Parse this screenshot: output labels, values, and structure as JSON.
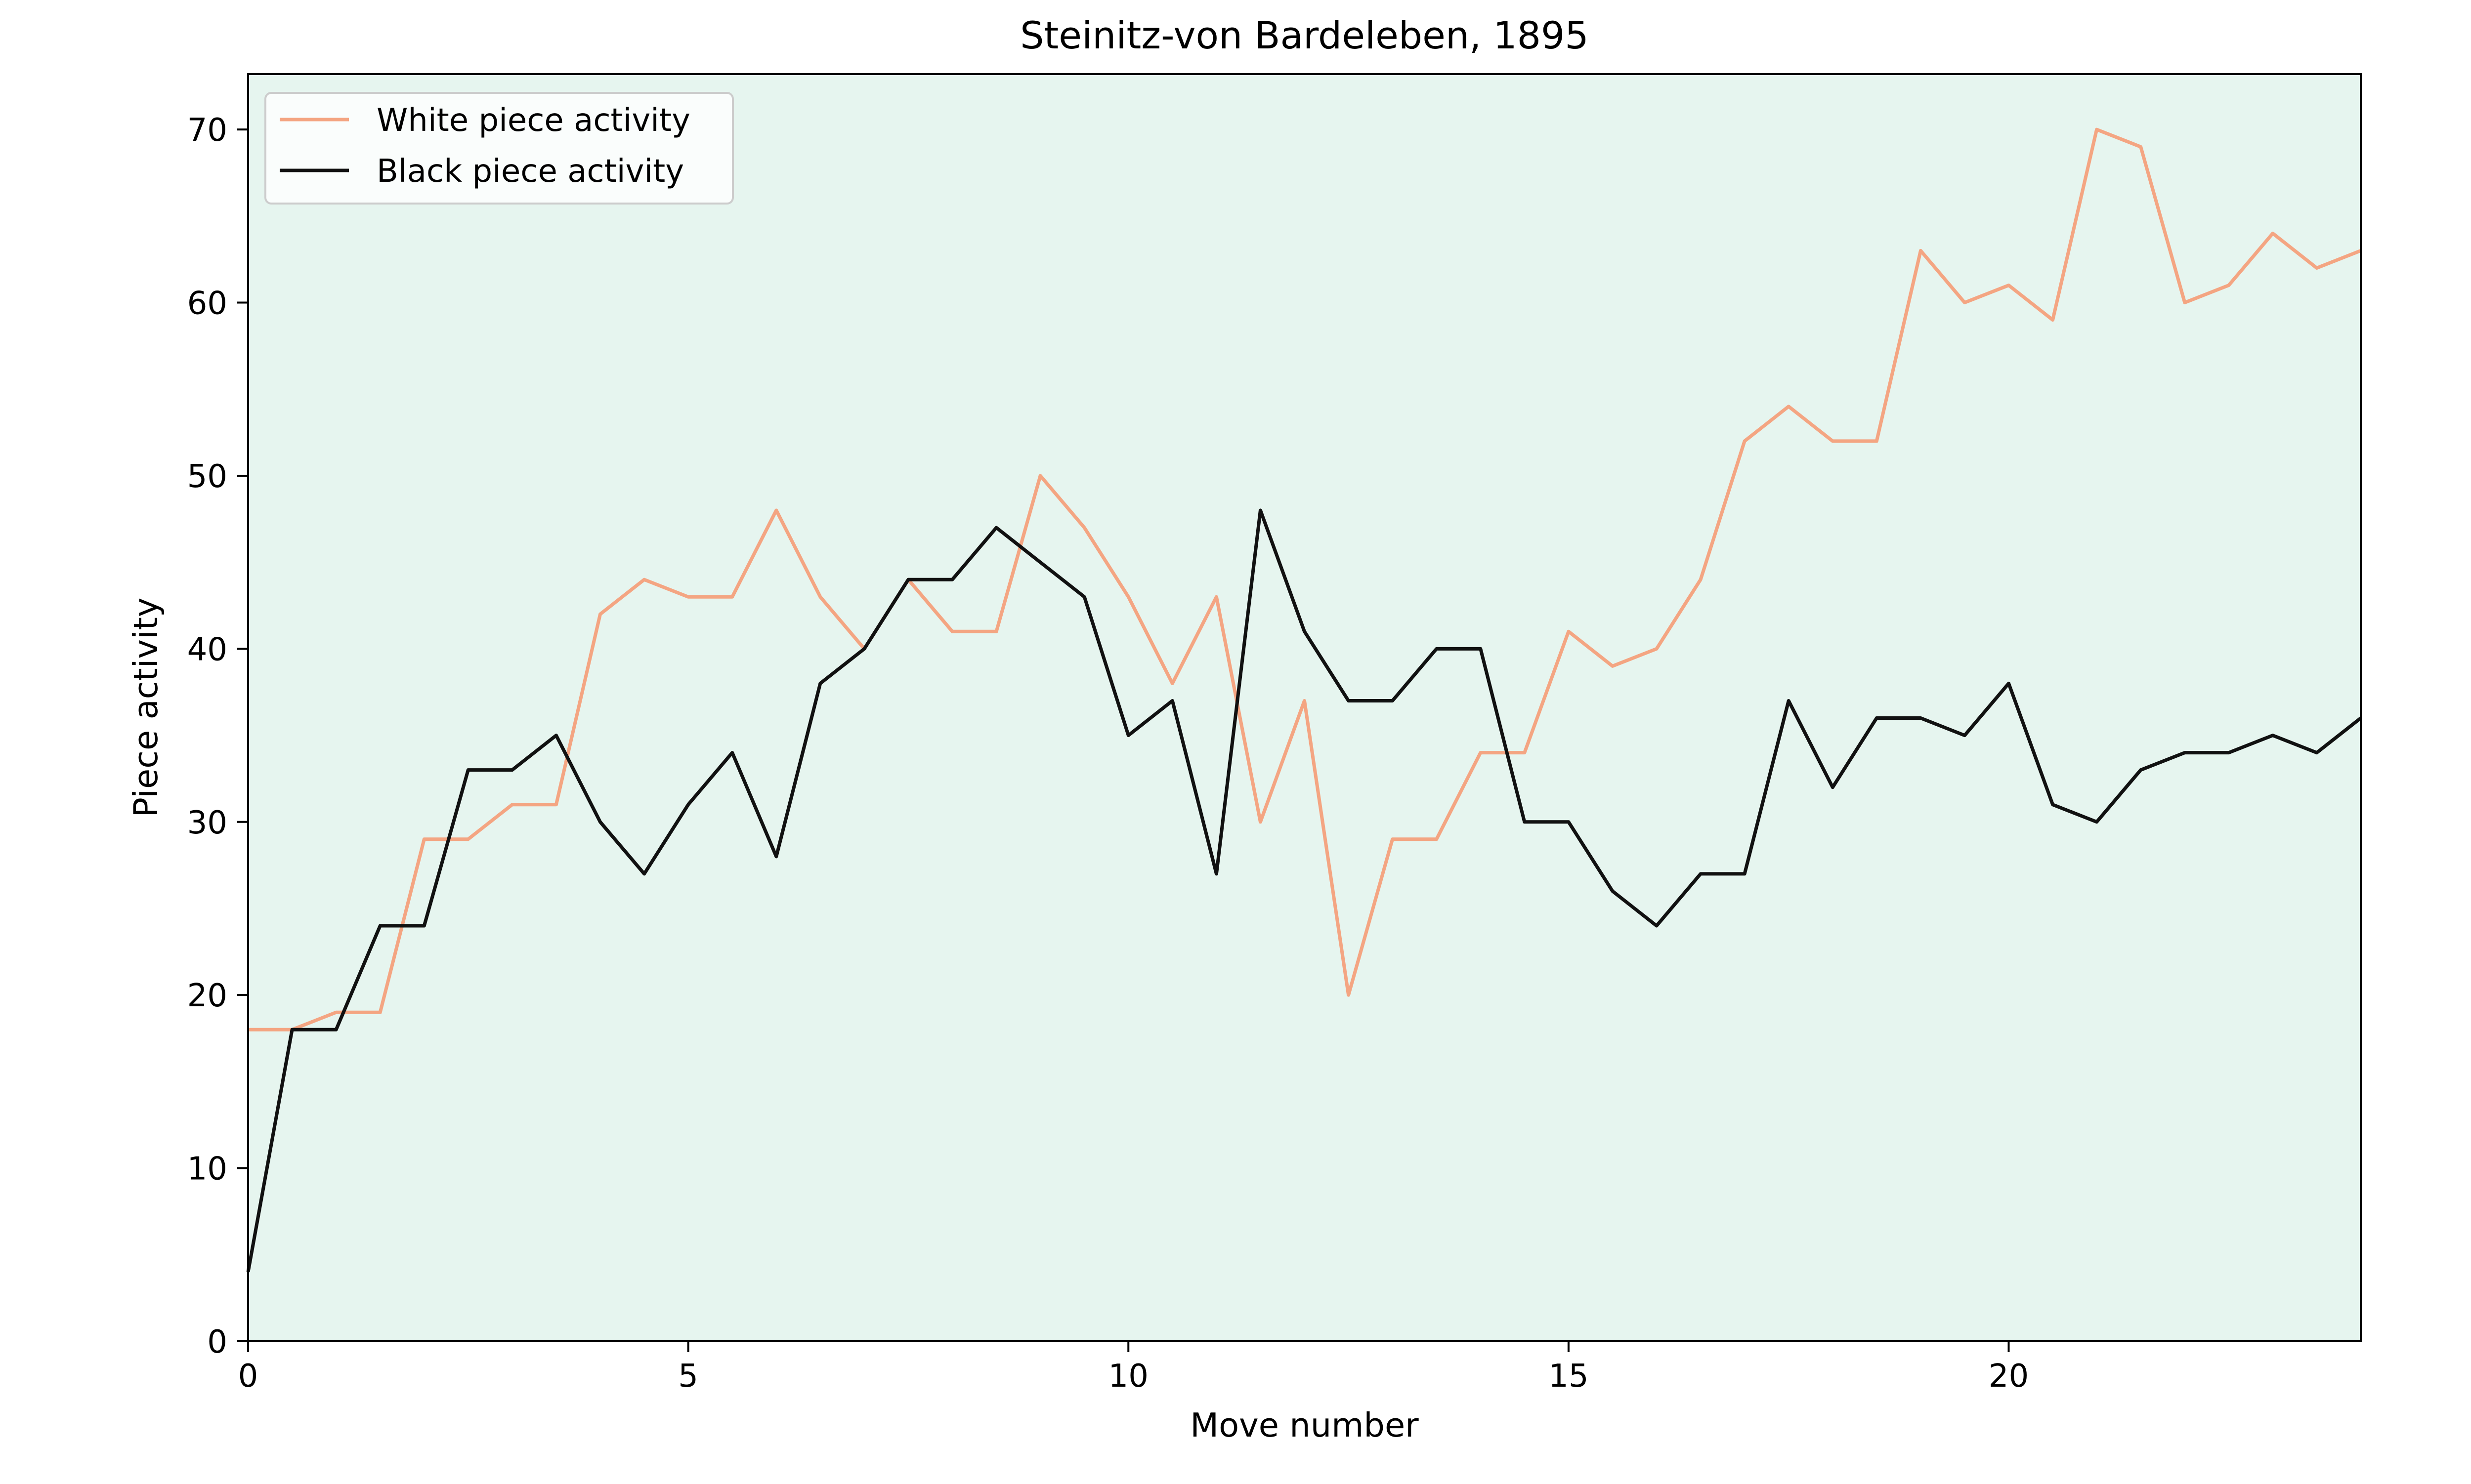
{
  "chart_data": {
    "type": "line",
    "title": "Steinitz-von Bardeleben, 1895",
    "xlabel": "Move number",
    "ylabel": "Piece activity",
    "xlim": [
      0,
      24
    ],
    "ylim": [
      0,
      73.2
    ],
    "xticks": [
      0,
      5,
      10,
      15,
      20
    ],
    "yticks": [
      0,
      10,
      20,
      30,
      40,
      50,
      60,
      70
    ],
    "grid": false,
    "legend_position": "top-left",
    "plot_background": "#e6f5ef",
    "x": [
      0,
      0.5,
      1,
      1.5,
      2,
      2.5,
      3,
      3.5,
      4,
      4.5,
      5,
      5.5,
      6,
      6.5,
      7,
      7.5,
      8,
      8.5,
      9,
      9.5,
      10,
      10.5,
      11,
      11.5,
      12,
      12.5,
      13,
      13.5,
      14,
      14.5,
      15,
      15.5,
      16,
      16.5,
      17,
      17.5,
      18,
      18.5,
      19,
      19.5,
      20,
      20.5,
      21,
      21.5,
      22,
      22.5,
      23,
      23.5,
      24
    ],
    "series": [
      {
        "name": "White piece activity",
        "color": "#f4a582",
        "values": [
          18,
          18,
          19,
          19,
          29,
          29,
          31,
          31,
          42,
          44,
          43,
          43,
          48,
          43,
          40,
          44,
          41,
          41,
          50,
          47,
          43,
          38,
          43,
          30,
          37,
          20,
          29,
          29,
          34,
          34,
          41,
          39,
          40,
          44,
          52,
          54,
          52,
          52,
          63,
          60,
          61,
          59,
          70,
          69,
          60,
          61,
          64,
          62,
          63
        ]
      },
      {
        "name": "Black piece activity",
        "color": "#111111",
        "values": [
          4,
          18,
          18,
          24,
          24,
          33,
          33,
          35,
          30,
          27,
          31,
          34,
          28,
          38,
          40,
          44,
          44,
          47,
          45,
          43,
          35,
          37,
          27,
          48,
          41,
          37,
          37,
          40,
          40,
          30,
          30,
          26,
          24,
          27,
          27,
          37,
          32,
          36,
          36,
          35,
          38,
          31,
          30,
          33,
          34,
          34,
          35,
          34,
          36
        ]
      }
    ]
  }
}
